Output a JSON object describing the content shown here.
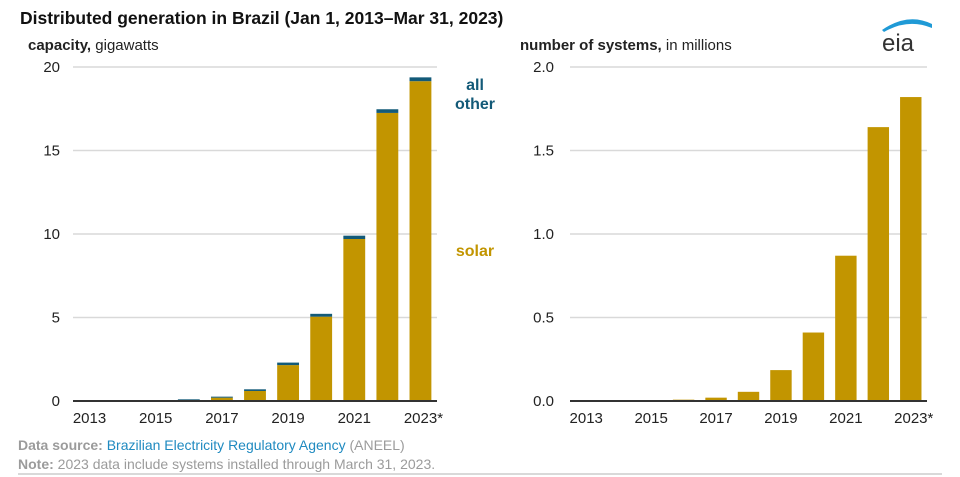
{
  "title": "Distributed generation in Brazil (Jan 1, 2013–Mar 31, 2023)",
  "logo_text": "eia",
  "colors": {
    "solar": "#c29500",
    "all_other": "#135a78",
    "grid": "#d9d9d9",
    "axis": "#333333",
    "link": "#1f8ac0"
  },
  "source": {
    "label": "Data source:",
    "link_text": "Brazilian Electricity Regulatory Agency",
    "suffix": "(ANEEL)"
  },
  "note": {
    "label": "Note:",
    "text": "2023 data include systems installed through March 31, 2023."
  },
  "chart_data": [
    {
      "type": "bar",
      "stacked": true,
      "title_bold": "capacity,",
      "title_rest": "gigawatts",
      "ylabel": "gigawatts",
      "xlabel": "",
      "categories": [
        "2013",
        "2014",
        "2015",
        "2016",
        "2017",
        "2018",
        "2019",
        "2020",
        "2021",
        "2022",
        "2023*"
      ],
      "x_tick_labels": [
        "2013",
        "",
        "2015",
        "",
        "2017",
        "",
        "2019",
        "",
        "2021",
        "",
        "2023*"
      ],
      "ylim": [
        0,
        20
      ],
      "yticks": [
        0,
        5,
        10,
        15,
        20
      ],
      "ytick_labels": [
        "0",
        "5",
        "10",
        "15",
        "20"
      ],
      "grid": true,
      "series": [
        {
          "name": "solar",
          "color": "#c29500",
          "values": [
            0.0,
            0.0,
            0.01,
            0.05,
            0.2,
            0.6,
            2.15,
            5.05,
            9.7,
            17.25,
            19.15
          ]
        },
        {
          "name": "all other",
          "color": "#135a78",
          "values": [
            0.0,
            0.01,
            0.02,
            0.05,
            0.06,
            0.1,
            0.15,
            0.17,
            0.2,
            0.22,
            0.23
          ]
        }
      ],
      "legend": [
        {
          "label_line1": "all",
          "label_line2": "other",
          "series": "all other",
          "placement": "top-right"
        },
        {
          "label_line1": "solar",
          "label_line2": "",
          "series": "solar",
          "placement": "middle-right"
        }
      ]
    },
    {
      "type": "bar",
      "title_bold": "number of systems,",
      "title_rest": "in millions",
      "ylabel": "millions",
      "xlabel": "",
      "categories": [
        "2013",
        "2014",
        "2015",
        "2016",
        "2017",
        "2018",
        "2019",
        "2020",
        "2021",
        "2022",
        "2023*"
      ],
      "x_tick_labels": [
        "2013",
        "",
        "2015",
        "",
        "2017",
        "",
        "2019",
        "",
        "2021",
        "",
        "2023*"
      ],
      "ylim": [
        0,
        2.0
      ],
      "yticks": [
        0,
        0.5,
        1.0,
        1.5,
        2.0
      ],
      "ytick_labels": [
        "0.0",
        "0.5",
        "1.0",
        "1.5",
        "2.0"
      ],
      "grid": true,
      "series": [
        {
          "name": "systems",
          "color": "#c29500",
          "values": [
            0.0,
            0.0,
            0.002,
            0.008,
            0.02,
            0.055,
            0.185,
            0.41,
            0.87,
            1.64,
            1.82
          ]
        }
      ]
    }
  ]
}
